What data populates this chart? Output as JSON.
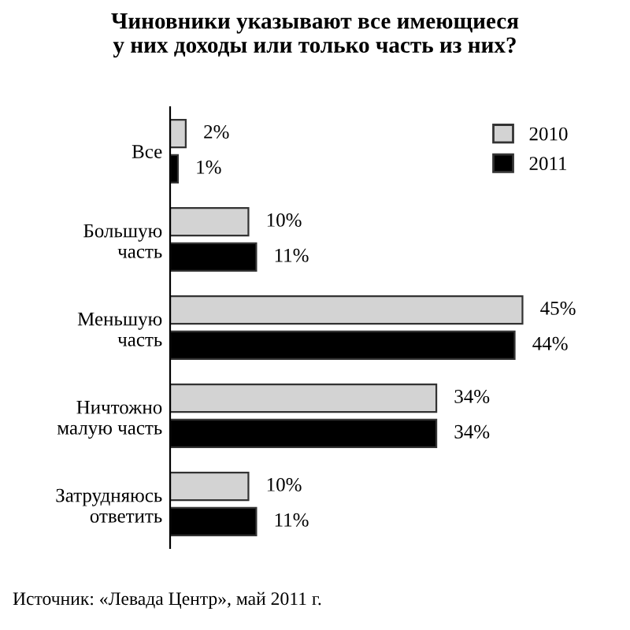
{
  "chart_data": {
    "type": "bar",
    "orientation": "horizontal",
    "title": "Чиновники указывают все имеющиеся\nу них доходы или только часть из них?",
    "categories": [
      "Все",
      "Большую\nчасть",
      "Меньшую\nчасть",
      "Ничтожно\nмалую часть",
      "Затрудняюсь\nответить"
    ],
    "series": [
      {
        "name": "2010",
        "color": "#d3d3d3",
        "values": [
          2,
          10,
          45,
          34,
          10
        ],
        "value_labels": [
          "2%",
          "10%",
          "45%",
          "34%",
          "10%"
        ]
      },
      {
        "name": "2011",
        "color": "#000000",
        "values": [
          1,
          11,
          44,
          34,
          11
        ],
        "value_labels": [
          "1%",
          "11%",
          "44%",
          "34%",
          "11%"
        ]
      }
    ],
    "legend": "top right",
    "grid": false,
    "annotations": [
      "Источник: «Левада Центр», май 2011 г."
    ]
  }
}
